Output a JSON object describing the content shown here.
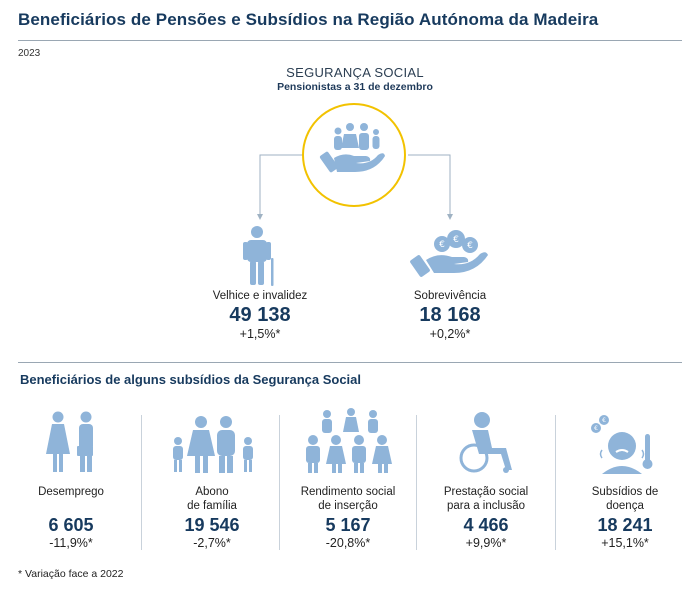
{
  "header": {
    "title": "Beneficiários de Pensões e Subsídios na Região Autónoma da Madeira",
    "year": "2023"
  },
  "pensions": {
    "title": "SEGURANÇA SOCIAL",
    "subtitle": "Pensionistas a 31 de dezembro",
    "items": [
      {
        "label": "Velhice e invalidez",
        "value": "49 138",
        "change": "+1,5%*",
        "icon": "elderly-person-icon"
      },
      {
        "label": "Sobrevivência",
        "value": "18 168",
        "change": "+0,2%*",
        "icon": "hand-coins-icon"
      }
    ]
  },
  "subsidies": {
    "title": "Beneficiários de alguns subsídios da Segurança Social",
    "items": [
      {
        "label1": "Desemprego",
        "label2": "",
        "value": "6 605",
        "change": "-11,9%*",
        "icon": "unemployed-people-icon"
      },
      {
        "label1": "Abono",
        "label2": "de família",
        "value": "19 546",
        "change": "-2,7%*",
        "icon": "family-icon"
      },
      {
        "label1": "Rendimento social",
        "label2": "de inserção",
        "value": "5 167",
        "change": "-20,8%*",
        "icon": "community-icon"
      },
      {
        "label1": "Prestação social",
        "label2": "para a inclusão",
        "value": "4 466",
        "change": "+9,9%*",
        "icon": "wheelchair-icon"
      },
      {
        "label1": "Subsídios de",
        "label2": "doença",
        "value": "18 241",
        "change": "+15,1%*",
        "icon": "sick-person-icon"
      }
    ]
  },
  "footnote": "* Variação face a 2022",
  "colors": {
    "accent": "#f2c200",
    "icon": "#8fb4d9",
    "heading": "#173a5e"
  }
}
